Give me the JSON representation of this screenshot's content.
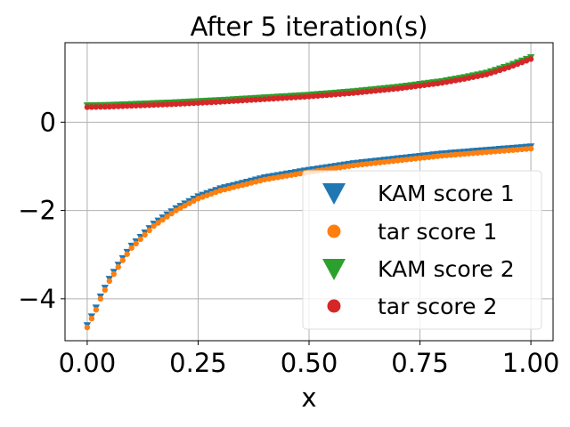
{
  "chart_data": {
    "type": "scatter",
    "title": "After 5 iteration(s)",
    "xlabel": "x",
    "ylabel": "",
    "xlim": [
      -0.05,
      1.05
    ],
    "ylim": [
      -4.95,
      1.8
    ],
    "grid": true,
    "legend_position": "lower-right",
    "x_ticks": [
      {
        "value": 0.0,
        "label": "0.00"
      },
      {
        "value": 0.25,
        "label": "0.25"
      },
      {
        "value": 0.5,
        "label": "0.50"
      },
      {
        "value": 0.75,
        "label": "0.75"
      },
      {
        "value": 1.0,
        "label": "1.00"
      }
    ],
    "y_ticks": [
      {
        "value": 0,
        "label": "0"
      },
      {
        "value": -2,
        "label": "−2"
      },
      {
        "value": -4,
        "label": "−4"
      }
    ],
    "series": [
      {
        "name": "KAM score 1",
        "marker": "triangle-down",
        "color": "#1f77b4",
        "x": [
          0.0,
          0.01,
          0.02,
          0.03,
          0.05,
          0.075,
          0.1,
          0.15,
          0.2,
          0.25,
          0.3,
          0.4,
          0.5,
          0.6,
          0.7,
          0.8,
          0.9,
          1.0
        ],
        "y": [
          -4.6,
          -4.4,
          -4.2,
          -3.95,
          -3.55,
          -3.15,
          -2.8,
          -2.3,
          -1.95,
          -1.68,
          -1.5,
          -1.25,
          -1.08,
          -0.93,
          -0.82,
          -0.71,
          -0.63,
          -0.55
        ]
      },
      {
        "name": "tar score 1",
        "marker": "circle",
        "color": "#ff7f0e",
        "x": [
          0.0,
          0.01,
          0.02,
          0.03,
          0.05,
          0.075,
          0.1,
          0.15,
          0.2,
          0.25,
          0.3,
          0.4,
          0.5,
          0.6,
          0.7,
          0.8,
          0.9,
          1.0
        ],
        "y": [
          -4.65,
          -4.45,
          -4.25,
          -4.0,
          -3.6,
          -3.2,
          -2.85,
          -2.35,
          -2.0,
          -1.73,
          -1.55,
          -1.3,
          -1.13,
          -0.98,
          -0.87,
          -0.76,
          -0.68,
          -0.6
        ]
      },
      {
        "name": "KAM score 2",
        "marker": "triangle-down",
        "color": "#2ca02c",
        "x": [
          0.0,
          0.05,
          0.1,
          0.2,
          0.3,
          0.4,
          0.5,
          0.6,
          0.7,
          0.8,
          0.85,
          0.9,
          0.95,
          1.0
        ],
        "y": [
          0.38,
          0.39,
          0.41,
          0.45,
          0.5,
          0.56,
          0.62,
          0.7,
          0.8,
          0.93,
          1.02,
          1.12,
          1.28,
          1.47
        ]
      },
      {
        "name": "tar score 2",
        "marker": "circle",
        "color": "#d62728",
        "x": [
          0.0,
          0.05,
          0.1,
          0.2,
          0.3,
          0.4,
          0.5,
          0.6,
          0.7,
          0.8,
          0.85,
          0.9,
          0.95,
          1.0
        ],
        "y": [
          0.34,
          0.35,
          0.37,
          0.41,
          0.46,
          0.52,
          0.58,
          0.66,
          0.76,
          0.89,
          0.98,
          1.08,
          1.24,
          1.43
        ]
      }
    ]
  }
}
